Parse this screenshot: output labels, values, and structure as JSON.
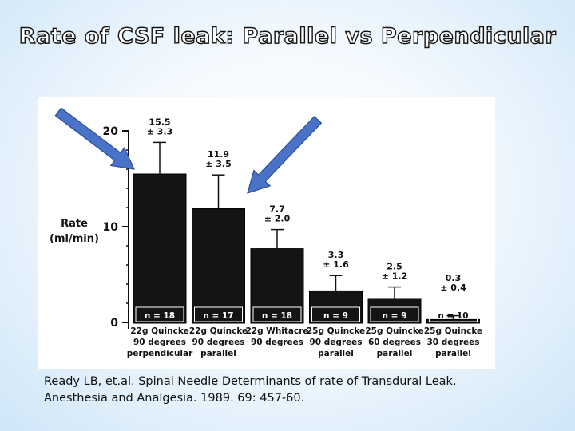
{
  "slide": {
    "title": "Rate of CSF leak: Parallel vs Perpendicular",
    "citation_line1": "Ready LB, et.al. Spinal Needle Determinants of rate of Transdural Leak.",
    "citation_line2": "Anesthesia and Analgesia. 1989. 69: 457-60.",
    "arrow_color": "#4a72c6"
  },
  "chart_data": {
    "type": "bar",
    "ylabel_line1": "Rate",
    "ylabel_line2": "(ml/min)",
    "ylim": [
      0,
      20
    ],
    "yticks": [
      0,
      10,
      20
    ],
    "categories": [
      {
        "line1": "22g Quincke",
        "line2": "90 degrees",
        "line3": "perpendicular"
      },
      {
        "line1": "22g Quincke",
        "line2": "90 degrees",
        "line3": "parallel"
      },
      {
        "line1": "22g Whitacre",
        "line2": "90 degrees",
        "line3": ""
      },
      {
        "line1": "25g Quincke",
        "line2": "90 degrees",
        "line3": "parallel"
      },
      {
        "line1": "25g Quincke",
        "line2": "60 degrees",
        "line3": "parallel"
      },
      {
        "line1": "25g Quincke",
        "line2": "30 degrees",
        "line3": "parallel"
      }
    ],
    "values": [
      15.5,
      11.9,
      7.7,
      3.3,
      2.5,
      0.3
    ],
    "errors": [
      3.3,
      3.5,
      2.0,
      1.6,
      1.2,
      0.4
    ],
    "value_labels": [
      "15.5",
      "11.9",
      "7.7",
      "3.3",
      "2.5",
      "0.3"
    ],
    "error_labels": [
      "± 3.3",
      "± 3.5",
      "± 2.0",
      "± 1.6",
      "± 1.2",
      "± 0.4"
    ],
    "n_labels": [
      "n = 18",
      "n = 17",
      "n = 18",
      "n = 9",
      "n = 9",
      "n = 10"
    ],
    "bar_color": "#141414",
    "grid": false
  }
}
